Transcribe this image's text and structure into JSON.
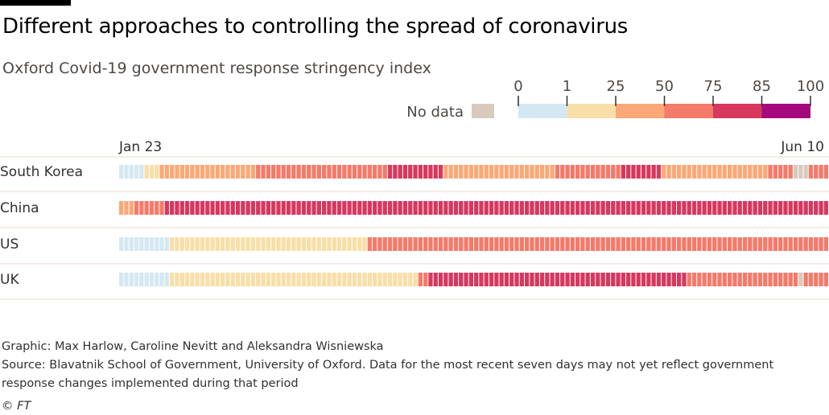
{
  "title": "Different approaches to controlling the spread of coronavirus",
  "subtitle": "Oxford Covid-19 government response stringency index",
  "legend": {
    "no_data_label": "No data",
    "no_data_color": "#d8cbbd",
    "breaks": [
      "0",
      "1",
      "25",
      "50",
      "75",
      "85",
      "100"
    ],
    "colors": [
      "#d4e8f2",
      "#f8dfa8",
      "#fba877",
      "#f47a6a",
      "#d7385e",
      "#a4097e"
    ]
  },
  "chart_data": {
    "type": "heatmap",
    "title": "Different approaches to controlling the spread of coronavirus",
    "subtitle": "Oxford Covid-19 government response stringency index",
    "x_start_label": "Jan 23",
    "x_end_label": "Jun 10",
    "days": 140,
    "bin_edges": [
      0,
      1,
      25,
      50,
      75,
      85,
      100
    ],
    "series": [
      {
        "name": "South Korea",
        "runs": [
          [
            0,
            10,
            0.5
          ],
          [
            10,
            18,
            20
          ],
          [
            18,
            62,
            40
          ],
          [
            62,
            121,
            65
          ],
          [
            121,
            148,
            80
          ],
          [
            148,
            198,
            40
          ],
          [
            198,
            228,
            65
          ],
          [
            228,
            248,
            80
          ],
          [
            248,
            296,
            45
          ],
          [
            296,
            308,
            65
          ],
          [
            308,
            315,
            -1
          ],
          [
            315,
            325,
            65
          ]
        ]
      },
      {
        "name": "China",
        "runs": [
          [
            0,
            6,
            40
          ],
          [
            6,
            20,
            65
          ],
          [
            20,
            320,
            80
          ],
          [
            320,
            325,
            80
          ]
        ]
      },
      {
        "name": "US",
        "runs": [
          [
            0,
            22,
            0.5
          ],
          [
            22,
            113,
            20
          ],
          [
            113,
            325,
            65
          ]
        ]
      },
      {
        "name": "UK",
        "runs": [
          [
            0,
            22,
            0.5
          ],
          [
            22,
            136,
            20
          ],
          [
            136,
            141,
            65
          ],
          [
            141,
            258,
            80
          ],
          [
            258,
            310,
            65
          ],
          [
            310,
            312,
            -1
          ],
          [
            312,
            325,
            65
          ]
        ]
      }
    ]
  },
  "footer": {
    "graphic": "Graphic: Max Harlow, Caroline Nevitt and Aleksandra Wisniewska",
    "source_line1": "Source: Blavatnik School of Government, University of Oxford. Data for the most recent seven days may not yet reflect government",
    "source_line2": "response changes implemented during that period",
    "copyright": "© FT"
  }
}
